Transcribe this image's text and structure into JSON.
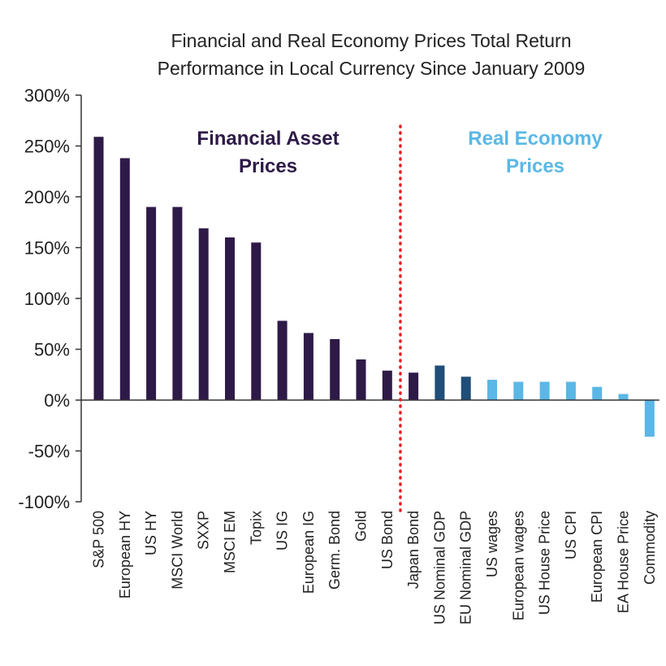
{
  "chart_data": {
    "type": "bar",
    "title_lines": [
      "Financial and Real Economy Prices Total Return",
      "Performance in Local Currency Since January 2009"
    ],
    "xlabel": "",
    "ylabel": "",
    "ylim": [
      -100,
      300
    ],
    "yticks": [
      300,
      250,
      200,
      150,
      100,
      50,
      0,
      -50,
      -100
    ],
    "ytick_labels": [
      "300%",
      "250%",
      "200%",
      "150%",
      "100%",
      "50%",
      "0%",
      "-50%",
      "-100%"
    ],
    "categories": [
      "S&P 500",
      "European HY",
      "US HY",
      "MSCI World",
      "SXXP",
      "MSCI EM",
      "Topix",
      "US IG",
      "European IG",
      "Germ. Bond",
      "Gold",
      "US Bond",
      "Japan Bond",
      "US Nominal GDP",
      "EU Nominal GDP",
      "US wages",
      "European wages",
      "US House Price",
      "US CPI",
      "European CPI",
      "EA House Price",
      "Commodity"
    ],
    "values": [
      259,
      238,
      190,
      190,
      169,
      160,
      155,
      78,
      66,
      60,
      40,
      29,
      27,
      34,
      23,
      20,
      18,
      18,
      18,
      13,
      6,
      -36
    ],
    "bar_groups": [
      "financial",
      "financial",
      "financial",
      "financial",
      "financial",
      "financial",
      "financial",
      "financial",
      "financial",
      "financial",
      "financial",
      "financial",
      "financial",
      "gdp",
      "gdp",
      "real",
      "real",
      "real",
      "real",
      "real",
      "real",
      "real"
    ],
    "colors": {
      "financial": "#2e1a47",
      "gdp": "#1f4e79",
      "real": "#5bb7e5",
      "divider": "#e0202a",
      "axis": "#333333"
    },
    "annotations": {
      "financial": {
        "lines": [
          "Financial Asset",
          "Prices"
        ],
        "color": "#2e1a47"
      },
      "real": {
        "lines": [
          "Real Economy",
          "Prices"
        ],
        "color": "#5bb7e5"
      }
    },
    "divider_after_category": "US Bond"
  }
}
